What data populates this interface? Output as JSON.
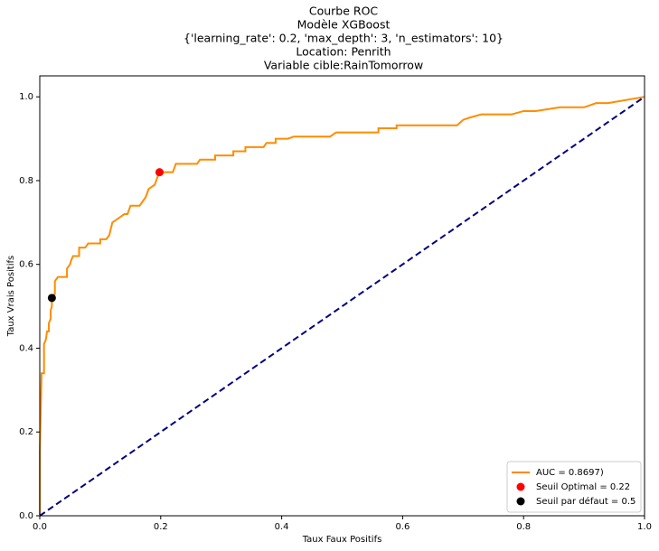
{
  "chart_data": {
    "type": "line",
    "title": [
      "Courbe ROC",
      "Modèle XGBoost",
      "{'learning_rate': 0.2, 'max_depth': 3, 'n_estimators': 10}",
      "Location: Penrith",
      "Variable cible:RainTomorrow"
    ],
    "x_label": "Taux Faux Positifs",
    "y_label": "Taux Vrais Positifs",
    "xlim": [
      0,
      1
    ],
    "ylim": [
      0,
      1.05
    ],
    "xticks": [
      {
        "value": 0,
        "label": "0.0"
      },
      {
        "value": 0.2,
        "label": "0.2"
      },
      {
        "value": 0.4,
        "label": "0.4"
      },
      {
        "value": 0.6,
        "label": "0.6"
      },
      {
        "value": 0.8,
        "label": "0.8"
      },
      {
        "value": 1,
        "label": "1.0"
      }
    ],
    "yticks": [
      {
        "value": 0,
        "label": "0.0"
      },
      {
        "value": 0.2,
        "label": "0.2"
      },
      {
        "value": 0.4,
        "label": "0.4"
      },
      {
        "value": 0.6,
        "label": "0.6"
      },
      {
        "value": 0.8,
        "label": "0.8"
      },
      {
        "value": 1,
        "label": "1.0"
      }
    ],
    "legend": "lower right",
    "series": [
      {
        "name": "AUC = 0.8697)",
        "color": "#ff8c00",
        "dashed": false,
        "x": [
          0,
          0,
          0.003,
          0.007,
          0.007,
          0.01,
          0.012,
          0.015,
          0.015,
          0.018,
          0.018,
          0.02,
          0.02,
          0.025,
          0.025,
          0.03,
          0.045,
          0.045,
          0.05,
          0.052,
          0.055,
          0.065,
          0.065,
          0.075,
          0.08,
          0.1,
          0.1,
          0.11,
          0.115,
          0.12,
          0.13,
          0.14,
          0.145,
          0.15,
          0.165,
          0.17,
          0.175,
          0.18,
          0.19,
          0.195,
          0.2,
          0.22,
          0.225,
          0.26,
          0.265,
          0.29,
          0.29,
          0.32,
          0.32,
          0.34,
          0.34,
          0.37,
          0.375,
          0.39,
          0.39,
          0.41,
          0.42,
          0.48,
          0.49,
          0.56,
          0.56,
          0.59,
          0.59,
          0.69,
          0.7,
          0.71,
          0.73,
          0.78,
          0.8,
          0.82,
          0.86,
          0.9,
          0.92,
          0.94,
          1
        ],
        "values": [
          0,
          0.15,
          0.34,
          0.34,
          0.41,
          0.42,
          0.44,
          0.44,
          0.46,
          0.47,
          0.49,
          0.5,
          0.52,
          0.53,
          0.56,
          0.57,
          0.57,
          0.59,
          0.6,
          0.61,
          0.62,
          0.62,
          0.64,
          0.64,
          0.65,
          0.65,
          0.66,
          0.66,
          0.67,
          0.7,
          0.71,
          0.72,
          0.72,
          0.74,
          0.74,
          0.75,
          0.76,
          0.78,
          0.79,
          0.81,
          0.82,
          0.82,
          0.84,
          0.84,
          0.85,
          0.85,
          0.86,
          0.86,
          0.87,
          0.87,
          0.88,
          0.88,
          0.89,
          0.89,
          0.9,
          0.9,
          0.905,
          0.905,
          0.915,
          0.915,
          0.925,
          0.925,
          0.932,
          0.932,
          0.945,
          0.95,
          0.958,
          0.958,
          0.966,
          0.966,
          0.975,
          0.975,
          0.985,
          0.985,
          1
        ]
      },
      {
        "color": "#000080",
        "dashed": true,
        "x": [
          0,
          1
        ],
        "values": [
          0,
          1
        ]
      }
    ],
    "points": [
      {
        "name": "Seuil Optimal = 0.22",
        "color": "#ff0000",
        "x": 0.198,
        "y": 0.82
      },
      {
        "name": "Seuil par défaut = 0.5",
        "color": "#000000",
        "x": 0.02,
        "y": 0.52
      }
    ]
  }
}
